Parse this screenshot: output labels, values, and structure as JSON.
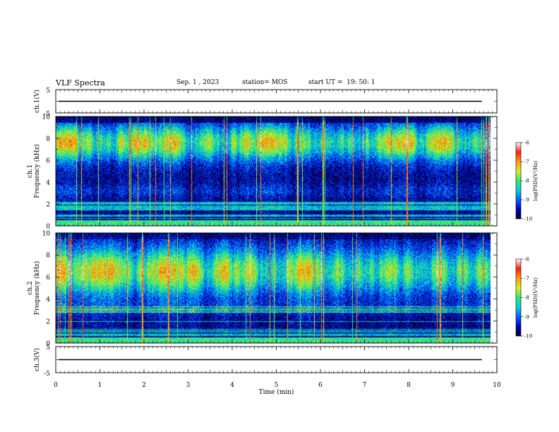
{
  "header": {
    "title": "VLF Spectra",
    "date": "Sep. 1 , 2023",
    "station": "station= MOS",
    "start_ut": "start UT =  19: 50: 1"
  },
  "chart_data": [
    {
      "type": "line",
      "panel": "ch1-waveform",
      "ylabel": "ch.1(V)",
      "yticks": [
        "5",
        "-5"
      ],
      "ylim": [
        -5,
        5
      ],
      "baseline_value": 0,
      "x_label": "",
      "note_text": ""
    },
    {
      "type": "heatmap",
      "panel": "ch1-spectrogram",
      "ylabel": "ch.1\nFrequency (kHz)",
      "ylabel_lines": [
        "ch.1",
        "Frequency (kHz)"
      ],
      "yticks": [
        "0",
        "2",
        "4",
        "6",
        "8",
        "10"
      ],
      "ylim": [
        0,
        10
      ],
      "xlim": [
        0,
        10
      ],
      "colorbar": {
        "label": "log(PSD)(V²/Hz)",
        "ticks": [
          "-6",
          "-7",
          "-8",
          "-9",
          "-10"
        ],
        "range": [
          -10,
          -6
        ]
      },
      "band_center_khz": 7.6,
      "band_halfwidth_khz": 1.6
    },
    {
      "type": "heatmap",
      "panel": "ch2-spectrogram",
      "ylabel_lines": [
        "ch.2",
        "Frequency (kHz)"
      ],
      "yticks": [
        "0",
        "2",
        "4",
        "6",
        "8",
        "10"
      ],
      "ylim": [
        0,
        10
      ],
      "xlim": [
        0,
        10
      ],
      "colorbar": {
        "label": "log(PSD)(V²/Hz)",
        "ticks": [
          "-6",
          "-7",
          "-8",
          "-9",
          "-10"
        ],
        "range": [
          -10,
          -6
        ]
      },
      "band_center_khz": 6.5,
      "band_halfwidth_khz": 2.1
    },
    {
      "type": "line",
      "panel": "ch3-waveform",
      "ylabel": "ch.3(V)",
      "yticks": [
        "5",
        "-5"
      ],
      "ylim": [
        -5,
        5
      ],
      "baseline_value": 0
    }
  ],
  "x_axis": {
    "label": "Time (min)",
    "ticks": [
      "0",
      "1",
      "2",
      "3",
      "4",
      "5",
      "6",
      "7",
      "8",
      "9",
      "10"
    ],
    "range": [
      0,
      10
    ],
    "data_end_min": 9.85
  },
  "colors": {
    "axis": "#000000",
    "background": "#ffffff",
    "colormap": [
      "#000020",
      "#0000c0",
      "#0060ff",
      "#00d0e0",
      "#30e870",
      "#d8f020",
      "#ff9a10",
      "#ff2010",
      "#ffffff"
    ]
  }
}
